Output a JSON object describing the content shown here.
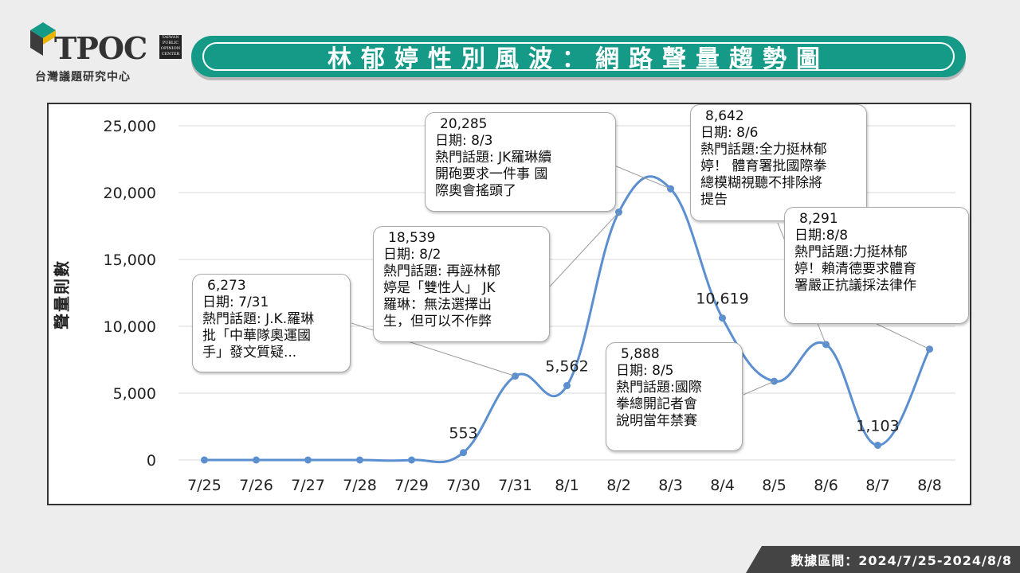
{
  "logo": {
    "text": "TPOC",
    "subtitle": "台灣議題研究中心",
    "seal": "TAIWAN PUBLIC OPINION CENTER"
  },
  "title": "林郁婷性別風波：網路聲量趨勢圖",
  "footer": "數據區間：2024/7/25-2024/8/8",
  "colors": {
    "line": "#5b8fd0",
    "accent": "#159a88",
    "footer_bg": "#444444"
  },
  "chart_data": {
    "type": "line",
    "title": "",
    "ylabel": "聲量則數",
    "xlabel": "",
    "ylim": [
      0,
      25000
    ],
    "yticks": [
      0,
      5000,
      10000,
      15000,
      20000,
      25000
    ],
    "ytick_labels": [
      "0",
      "5,000",
      "10,000",
      "15,000",
      "20,000",
      "25,000"
    ],
    "grid": true,
    "categories": [
      "7/25",
      "7/26",
      "7/27",
      "7/28",
      "7/29",
      "7/30",
      "7/31",
      "8/1",
      "8/2",
      "8/3",
      "8/4",
      "8/5",
      "8/6",
      "8/7",
      "8/8"
    ],
    "series": [
      {
        "values": [
          0,
          0,
          0,
          0,
          0,
          553,
          6273,
          5562,
          18539,
          20285,
          10619,
          5888,
          8642,
          1103,
          8291
        ]
      }
    ],
    "data_labels": [
      {
        "category": "7/30",
        "text": "553"
      },
      {
        "category": "8/1",
        "text": "5,562"
      },
      {
        "category": "8/4",
        "text": "10,619"
      },
      {
        "category": "8/7",
        "text": "1,103"
      }
    ]
  },
  "callouts": [
    {
      "category": "7/31",
      "value": "6,273",
      "body": "日期: 7/31\n熱門話題: J.K.羅琳\n批「中華隊奧運國\n手」發文質疑..."
    },
    {
      "category": "8/2",
      "value": "18,539",
      "body": "日期: 8/2\n熱門話題: 再誣林郁\n婷是「雙性人」 JK\n羅琳：無法選擇出\n生，但可以不作弊"
    },
    {
      "category": "8/3",
      "value": "20,285",
      "body": "日期: 8/3\n熱門話題: JK羅琳續\n開砲要求一件事 國\n際奧會搖頭了"
    },
    {
      "category": "8/5",
      "value": "5,888",
      "body": "日期: 8/5\n熱門話題:國際\n拳總開記者會\n說明當年禁賽"
    },
    {
      "category": "8/6",
      "value": "8,642",
      "body": "日期: 8/6\n熱門話題:全力挺林郁\n婷！ 體育署批國際拳\n總模糊視聽不排除將\n提告"
    },
    {
      "category": "8/8",
      "value": "8,291",
      "body": "日期:8/8\n熱門話題:力挺林郁\n婷！賴清德要求體育\n署嚴正抗議採法律作"
    }
  ]
}
